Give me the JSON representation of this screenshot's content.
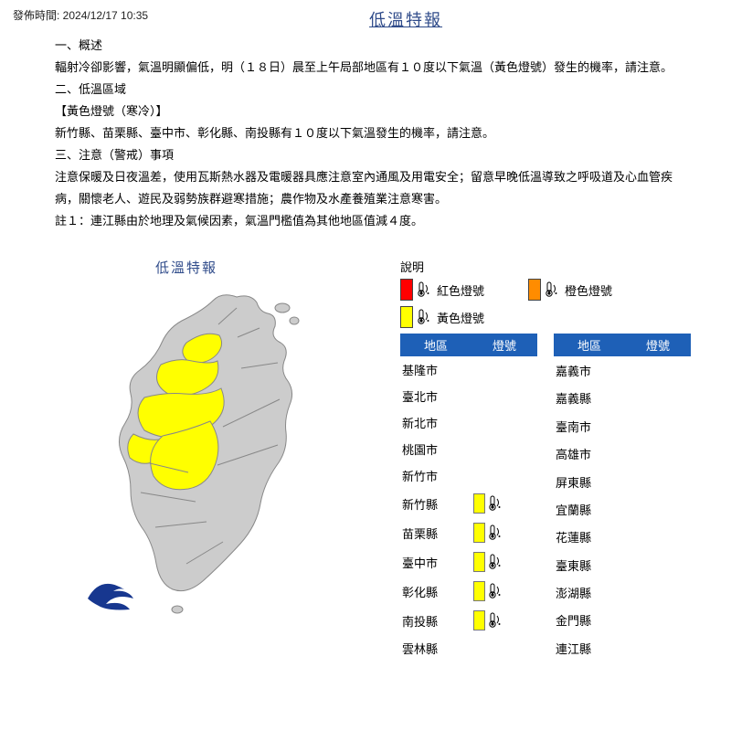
{
  "timestamp": "發佈時間: 2024/12/17 10:35",
  "title": "低溫特報",
  "body": {
    "l1": "一、概述",
    "l2": "輻射冷卻影響，氣溫明顯偏低，明（１８日）晨至上午局部地區有１０度以下氣溫（黃色燈號）發生的機率，請注意。",
    "l3": "二、低溫區域",
    "l4": "【黃色燈號（寒冷）】",
    "l5": "新竹縣、苗栗縣、臺中市、彰化縣、南投縣有１０度以下氣溫發生的機率，請注意。",
    "l6": "三、注意（警戒）事項",
    "l7": "注意保暖及日夜溫差，使用瓦斯熱水器及電暖器具應注意室內通風及用電安全；留意早晚低溫導致之呼吸道及心血管疾病，關懷老人、遊民及弱勢族群避寒措施；農作物及水產養殖業注意寒害。",
    "l8": "註１：連江縣由於地理及氣候因素，氣溫門檻值為其他地區值減４度。"
  },
  "map": {
    "title": "低溫特報",
    "base_fill": "#cccccc",
    "highlight_fill": "#ffff00",
    "stroke": "#888888"
  },
  "legend": {
    "title": "說明",
    "items": [
      {
        "label": "紅色燈號",
        "swatch": "#ff0000"
      },
      {
        "label": "橙色燈號",
        "swatch": "#ff8c00"
      },
      {
        "label": "黃色燈號",
        "swatch": "#ffff00"
      }
    ]
  },
  "table": {
    "headers": {
      "region": "地區",
      "signal": "燈號"
    },
    "colA": [
      {
        "name": "基隆市",
        "sig": null
      },
      {
        "name": "臺北市",
        "sig": null
      },
      {
        "name": "新北市",
        "sig": null
      },
      {
        "name": "桃園市",
        "sig": null
      },
      {
        "name": "新竹市",
        "sig": null
      },
      {
        "name": "新竹縣",
        "sig": "#ffff00"
      },
      {
        "name": "苗栗縣",
        "sig": "#ffff00"
      },
      {
        "name": "臺中市",
        "sig": "#ffff00"
      },
      {
        "name": "彰化縣",
        "sig": "#ffff00"
      },
      {
        "name": "南投縣",
        "sig": "#ffff00"
      },
      {
        "name": "雲林縣",
        "sig": null
      }
    ],
    "colB": [
      {
        "name": "嘉義市",
        "sig": null
      },
      {
        "name": "嘉義縣",
        "sig": null
      },
      {
        "name": "臺南市",
        "sig": null
      },
      {
        "name": "高雄市",
        "sig": null
      },
      {
        "name": "屏東縣",
        "sig": null
      },
      {
        "name": "宜蘭縣",
        "sig": null
      },
      {
        "name": "花蓮縣",
        "sig": null
      },
      {
        "name": "臺東縣",
        "sig": null
      },
      {
        "name": "澎湖縣",
        "sig": null
      },
      {
        "name": "金門縣",
        "sig": null
      },
      {
        "name": "連江縣",
        "sig": null
      }
    ]
  },
  "colors": {
    "header_bg": "#1e60b7",
    "title_color": "#2f4b8a",
    "logo": "#1a3a8a"
  }
}
